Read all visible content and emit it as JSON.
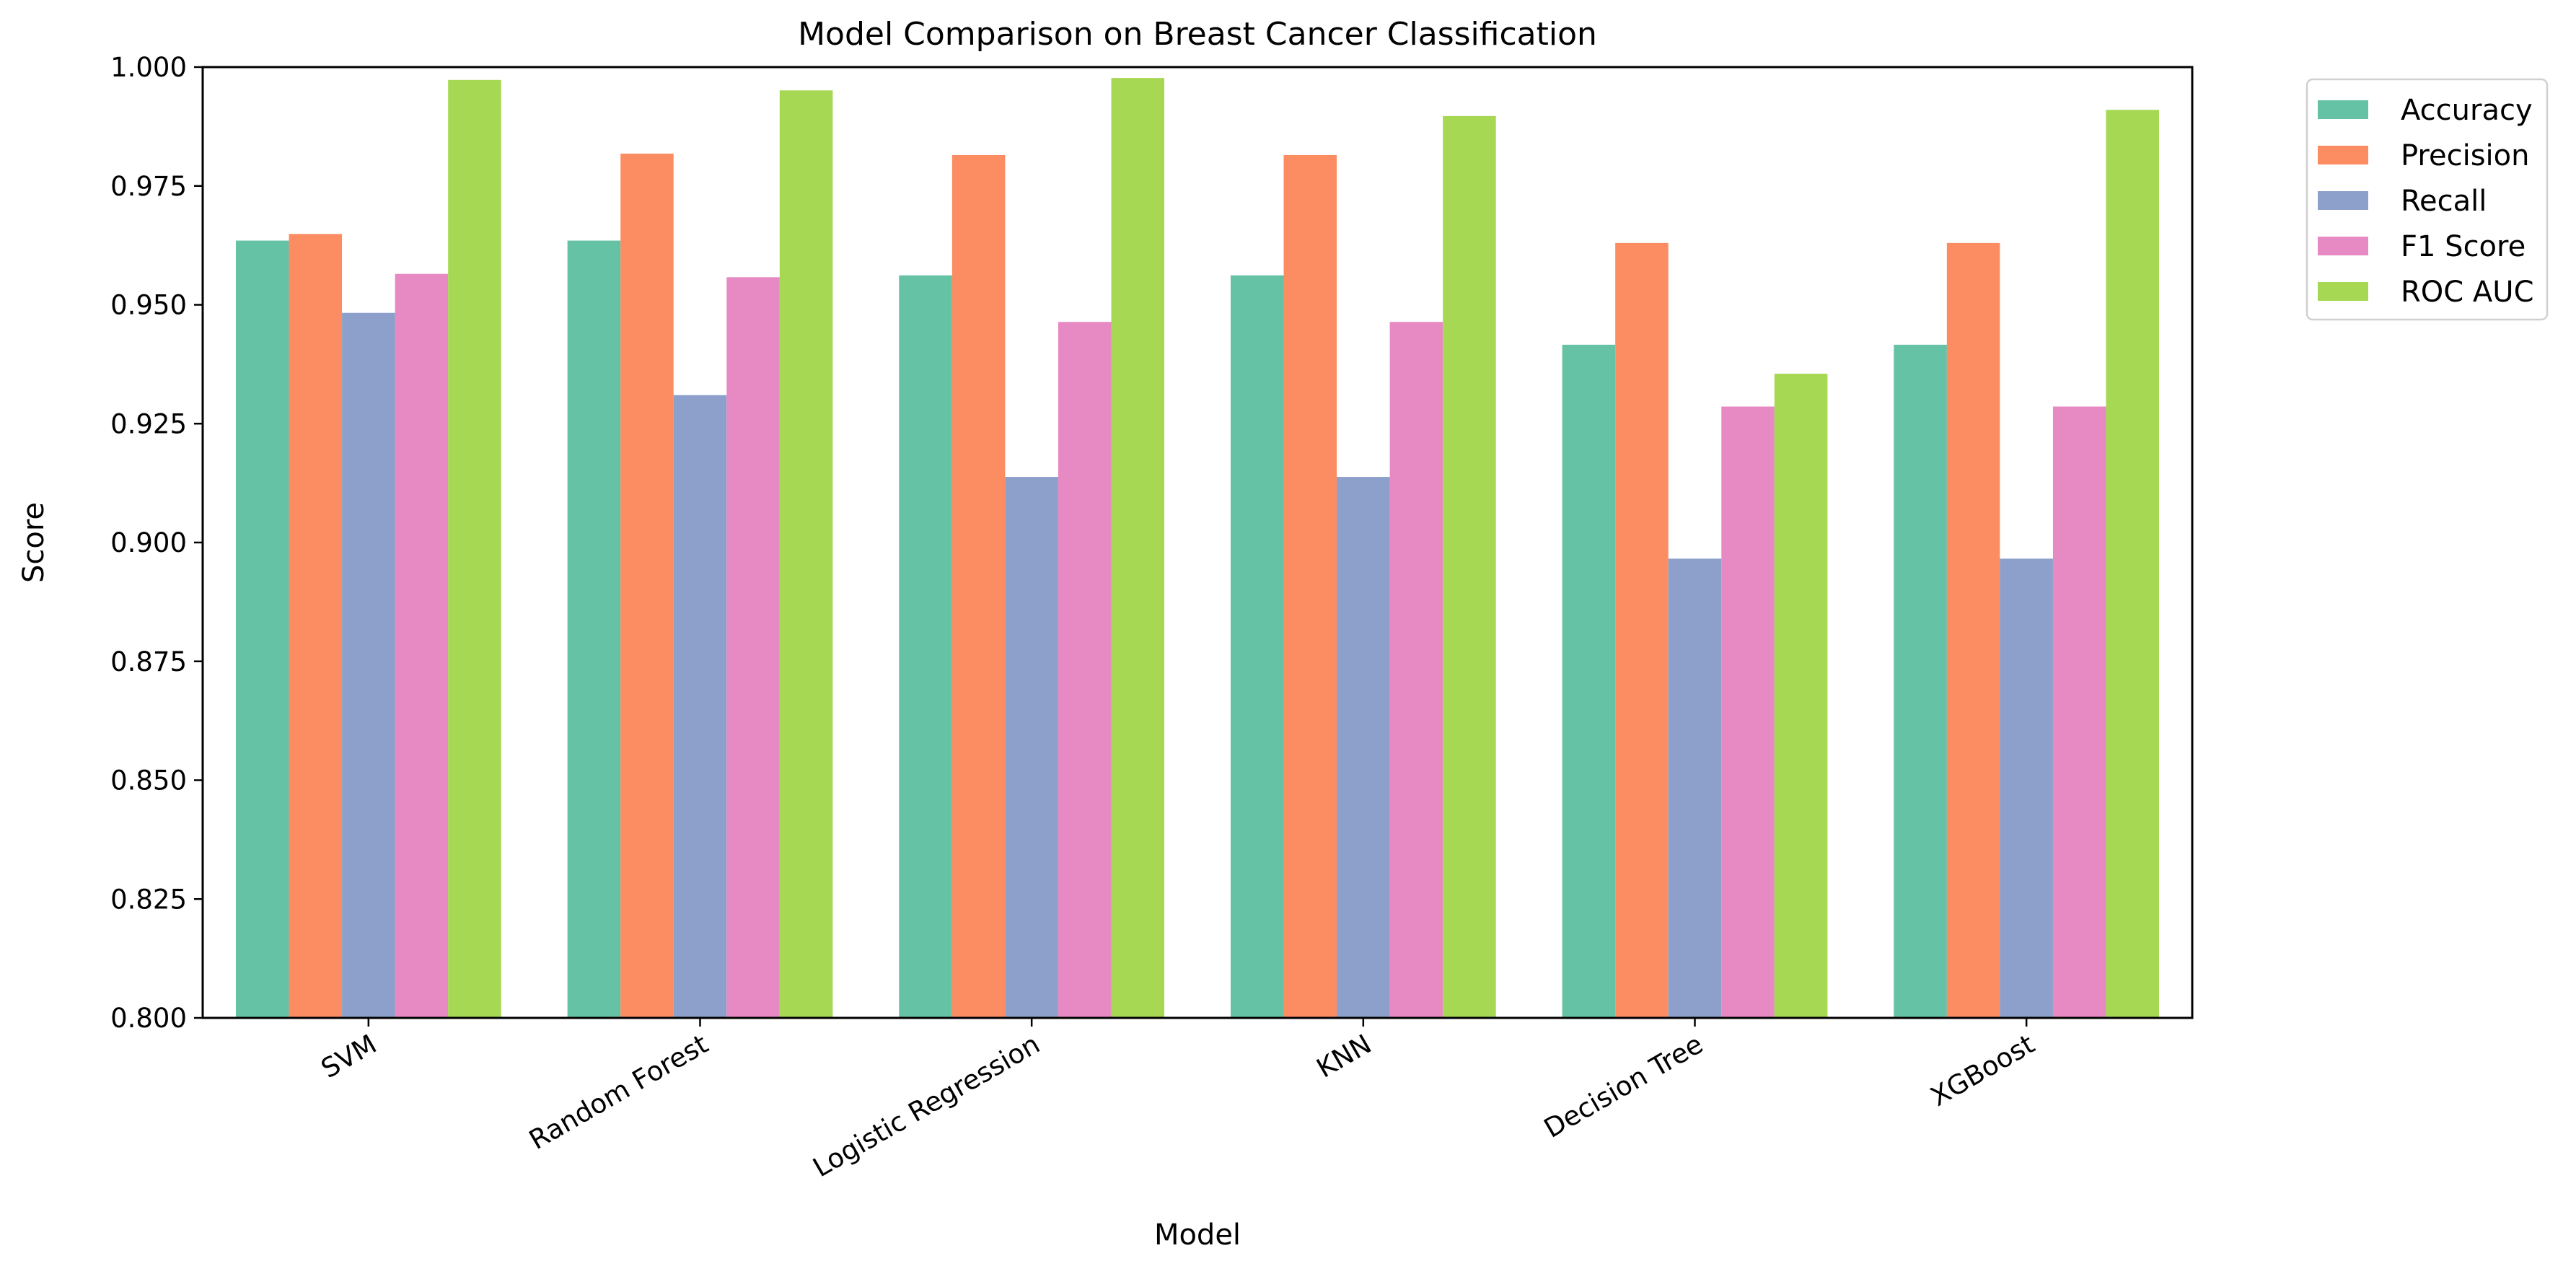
{
  "chart_data": {
    "type": "bar",
    "title": "Model Comparison on Breast Cancer Classification",
    "xlabel": "Model",
    "ylabel": "Score",
    "ylim": [
      0.8,
      1.0
    ],
    "yticks": [
      "0.800",
      "0.825",
      "0.850",
      "0.875",
      "0.900",
      "0.925",
      "0.950",
      "0.975",
      "1.000"
    ],
    "categories": [
      "SVM",
      "Random Forest",
      "Logistic Regression",
      "KNN",
      "Decision Tree",
      "XGBoost"
    ],
    "grid": false,
    "legend_position": "outside-top-right",
    "series": [
      {
        "name": "Accuracy",
        "color": "#66c2a5",
        "values": [
          0.9635,
          0.9635,
          0.9562,
          0.9562,
          0.9416,
          0.9416
        ]
      },
      {
        "name": "Precision",
        "color": "#fc8d62",
        "values": [
          0.9649,
          0.9818,
          0.9815,
          0.9815,
          0.963,
          0.963
        ]
      },
      {
        "name": "Recall",
        "color": "#8da0cb",
        "values": [
          0.9483,
          0.931,
          0.9138,
          0.9138,
          0.8966,
          0.8966
        ]
      },
      {
        "name": "F1 Score",
        "color": "#e78ac3",
        "values": [
          0.9565,
          0.9558,
          0.9464,
          0.9464,
          0.9286,
          0.9286
        ]
      },
      {
        "name": "ROC AUC",
        "color": "#a6d854",
        "values": [
          0.9973,
          0.9951,
          0.9977,
          0.9897,
          0.9355,
          0.991
        ]
      }
    ]
  }
}
